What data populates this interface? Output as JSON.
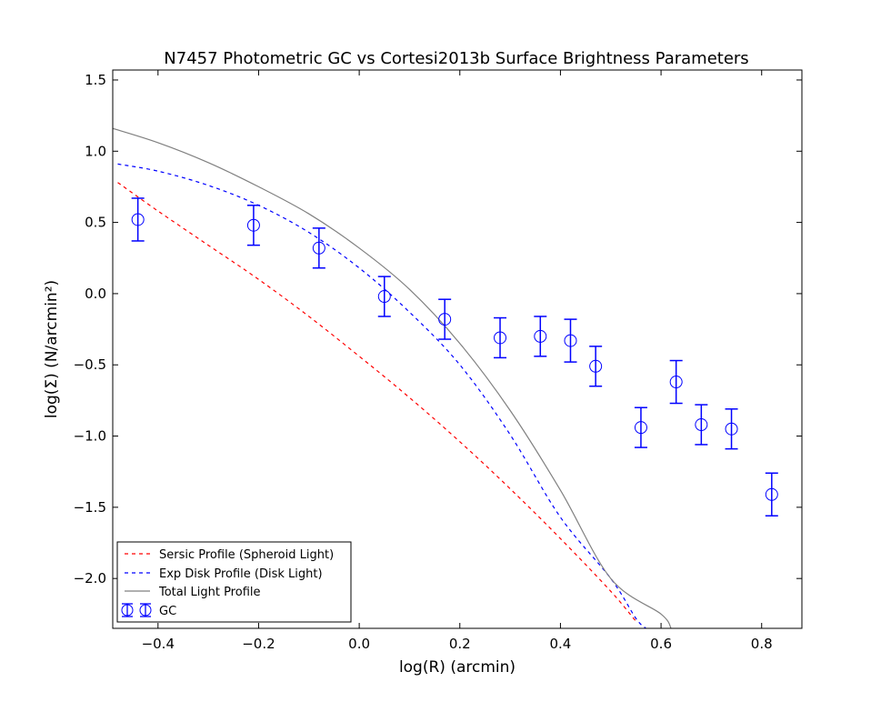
{
  "chart_data": {
    "type": "scatter",
    "title": "N7457 Photometric GC vs Cortesi2013b Surface Brightness Parameters",
    "xlabel": "log(R) (arcmin)",
    "ylabel": "log(Σ) (N/arcmin²)",
    "xlim": [
      -0.49,
      0.88
    ],
    "ylim": [
      -2.35,
      1.57
    ],
    "xticks": [
      -0.4,
      -0.2,
      0.0,
      0.2,
      0.4,
      0.6,
      0.8
    ],
    "xtick_labels": [
      "−0.4",
      "−0.2",
      "0.0",
      "0.2",
      "0.4",
      "0.6",
      "0.8"
    ],
    "yticks": [
      1.5,
      1.0,
      0.5,
      0.0,
      -0.5,
      -1.0,
      -1.5,
      -2.0
    ],
    "ytick_labels": [
      "1.5",
      "1.0",
      "0.5",
      "0.0",
      "−0.5",
      "−1.0",
      "−1.5",
      "−2.0"
    ],
    "grid": false,
    "legend_position": "bottom-left",
    "series": [
      {
        "name": "Sersic Profile (Spheroid Light)",
        "kind": "line",
        "style": "dashed",
        "color": "#ff0000",
        "x": [
          -0.48,
          -0.4,
          -0.3,
          -0.2,
          -0.1,
          0.0,
          0.1,
          0.2,
          0.3,
          0.4,
          0.5,
          0.55
        ],
        "y": [
          0.78,
          0.58,
          0.34,
          0.1,
          -0.16,
          -0.44,
          -0.73,
          -1.04,
          -1.37,
          -1.72,
          -2.09,
          -2.3
        ]
      },
      {
        "name": "Exp Disk Profile (Disk Light)",
        "kind": "line",
        "style": "dashed",
        "color": "#0000ff",
        "x": [
          -0.48,
          -0.4,
          -0.3,
          -0.2,
          -0.1,
          0.0,
          0.1,
          0.2,
          0.3,
          0.4,
          0.5,
          0.55,
          0.57
        ],
        "y": [
          0.91,
          0.86,
          0.76,
          0.62,
          0.43,
          0.18,
          -0.13,
          -0.5,
          -0.99,
          -1.57,
          -2.0,
          -2.28,
          -2.35
        ]
      },
      {
        "name": "Total Light Profile",
        "kind": "line",
        "style": "solid",
        "color": "#808080",
        "x": [
          -0.49,
          -0.4,
          -0.3,
          -0.2,
          -0.1,
          0.0,
          0.1,
          0.2,
          0.3,
          0.4,
          0.5,
          0.6,
          0.62
        ],
        "y": [
          1.16,
          1.06,
          0.92,
          0.75,
          0.56,
          0.32,
          0.03,
          -0.35,
          -0.82,
          -1.38,
          -2.0,
          -2.25,
          -2.35
        ]
      },
      {
        "name": "GC",
        "kind": "errorbar",
        "color": "#0000ff",
        "x": [
          -0.44,
          -0.21,
          -0.08,
          0.05,
          0.17,
          0.28,
          0.36,
          0.42,
          0.47,
          0.56,
          0.63,
          0.68,
          0.74,
          0.82
        ],
        "y": [
          0.52,
          0.48,
          0.32,
          -0.02,
          -0.18,
          -0.31,
          -0.3,
          -0.33,
          -0.51,
          -0.94,
          -0.62,
          -0.92,
          -0.95,
          -1.41
        ],
        "yerr": [
          0.15,
          0.14,
          0.14,
          0.14,
          0.14,
          0.14,
          0.14,
          0.15,
          0.14,
          0.14,
          0.15,
          0.14,
          0.14,
          0.15
        ]
      }
    ]
  }
}
